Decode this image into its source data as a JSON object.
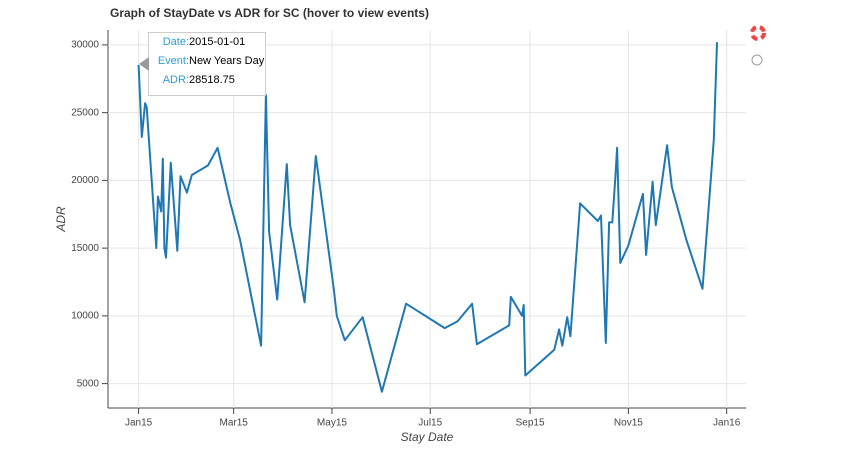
{
  "chart_data": {
    "type": "line",
    "title": "Graph of StayDate vs ADR for SC (hover to view events)",
    "x_label": "Stay Date",
    "y_label": "ADR",
    "x": [
      "2015-01-01",
      "2015-01-03",
      "2015-01-05",
      "2015-01-06",
      "2015-01-12",
      "2015-01-13",
      "2015-01-15",
      "2015-01-16",
      "2015-01-17",
      "2015-01-18",
      "2015-01-21",
      "2015-01-25",
      "2015-01-27",
      "2015-01-31",
      "2015-02-03",
      "2015-02-13",
      "2015-02-19",
      "2015-02-27",
      "2015-03-05",
      "2015-03-18",
      "2015-03-21",
      "2015-03-23",
      "2015-03-28",
      "2015-04-03",
      "2015-04-05",
      "2015-04-14",
      "2015-04-21",
      "2015-05-02",
      "2015-05-04",
      "2015-05-09",
      "2015-05-20",
      "2015-06-01",
      "2015-06-16",
      "2015-07-10",
      "2015-07-18",
      "2015-07-27",
      "2015-07-30",
      "2015-08-19",
      "2015-08-20",
      "2015-08-27",
      "2015-08-28",
      "2015-08-29",
      "2015-09-16",
      "2015-09-19",
      "2015-09-21",
      "2015-09-24",
      "2015-09-26",
      "2015-10-02",
      "2015-10-13",
      "2015-10-15",
      "2015-10-18",
      "2015-10-20",
      "2015-10-22",
      "2015-10-24",
      "2015-10-25",
      "2015-10-27",
      "2015-11-01",
      "2015-11-10",
      "2015-11-12",
      "2015-11-16",
      "2015-11-18",
      "2015-11-25",
      "2015-11-28",
      "2015-12-07",
      "2015-12-17",
      "2015-12-24",
      "2015-12-26"
    ],
    "values": [
      28518.75,
      23200,
      25700,
      25400,
      15000,
      18800,
      17700,
      21600,
      15000,
      14300,
      21300,
      14800,
      20300,
      19100,
      20400,
      21100,
      22400,
      18300,
      15600,
      7800,
      26300,
      16200,
      11200,
      21200,
      16700,
      11000,
      21800,
      12100,
      10000,
      8200,
      9900,
      4400,
      10900,
      9100,
      9600,
      10900,
      7900,
      9300,
      11400,
      10000,
      10800,
      5600,
      7500,
      9000,
      7800,
      9900,
      8500,
      18300,
      17000,
      17400,
      8000,
      16900,
      16900,
      20400,
      22400,
      13900,
      15200,
      19000,
      14500,
      19900,
      16700,
      22600,
      19500,
      15600,
      12000,
      23000,
      30200
    ],
    "color": "#1f77b4",
    "xlim": [
      "2014-12-13",
      "2016-01-13"
    ],
    "xticks": [
      {
        "value": "2015-01-01",
        "label": "Jan15"
      },
      {
        "value": "2015-03-01",
        "label": "Mar15"
      },
      {
        "value": "2015-05-01",
        "label": "May15"
      },
      {
        "value": "2015-07-01",
        "label": "Jul15"
      },
      {
        "value": "2015-09-01",
        "label": "Sep15"
      },
      {
        "value": "2015-11-01",
        "label": "Nov15"
      },
      {
        "value": "2016-01-01",
        "label": "Jan16"
      }
    ],
    "ylim": [
      3200,
      31100
    ],
    "yticks": [
      5000,
      10000,
      15000,
      20000,
      25000,
      30000
    ],
    "grid": true,
    "tooltip": [
      {
        "label": "Date:",
        "value": "2015-01-01"
      },
      {
        "label": "Event:",
        "value": "New Years Day"
      },
      {
        "label": "ADR:",
        "value": 28518.75
      }
    ]
  }
}
